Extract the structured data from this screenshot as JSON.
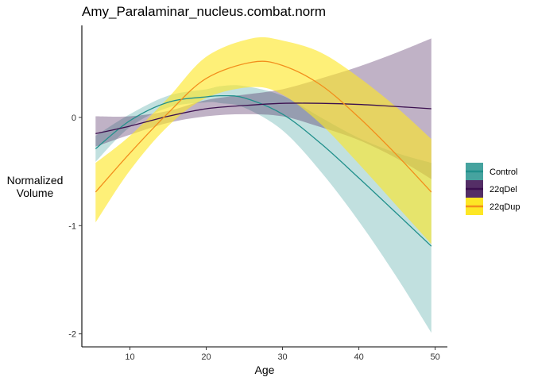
{
  "chart_data": {
    "type": "line",
    "title": "Amy_Paralaminar_nucleus.combat.norm",
    "xlabel": "Age",
    "ylabel_lines": [
      "Normalized",
      "Volume"
    ],
    "xlim": [
      3.7,
      51.6
    ],
    "ylim": [
      -2.12,
      0.85
    ],
    "xticks": [
      10,
      20,
      30,
      40,
      50
    ],
    "yticks": [
      0,
      -1,
      -2
    ],
    "grid": false,
    "legend_position": "right",
    "series": [
      {
        "name": "Control",
        "line_color": "#21908C",
        "band_color": "#21908C",
        "band_opacity": 0.28,
        "x": [
          5.5,
          10,
          15,
          20,
          22,
          25,
          30,
          35,
          40,
          45,
          49.5
        ],
        "y": [
          -0.29,
          -0.03,
          0.14,
          0.19,
          0.2,
          0.18,
          0.03,
          -0.24,
          -0.56,
          -0.89,
          -1.19
        ],
        "lower": [
          -0.41,
          -0.09,
          0.09,
          0.14,
          0.13,
          0.09,
          -0.12,
          -0.5,
          -0.96,
          -1.48,
          -1.99
        ],
        "upper": [
          -0.17,
          0.03,
          0.2,
          0.26,
          0.29,
          0.29,
          0.2,
          0.0,
          -0.19,
          -0.33,
          -0.42
        ]
      },
      {
        "name": "22qDel",
        "line_color": "#3B0F4F",
        "band_color": "#3B0F4F",
        "band_opacity": 0.32,
        "x": [
          5.5,
          10,
          15,
          20,
          25,
          30,
          35,
          40,
          45,
          49.5
        ],
        "y": [
          -0.15,
          -0.08,
          0.01,
          0.08,
          0.11,
          0.13,
          0.13,
          0.12,
          0.1,
          0.08
        ],
        "lower": [
          -0.27,
          -0.16,
          -0.05,
          0.01,
          0.03,
          0.01,
          -0.09,
          -0.21,
          -0.38,
          -0.57
        ],
        "upper": [
          0.01,
          0.01,
          0.06,
          0.16,
          0.21,
          0.26,
          0.36,
          0.47,
          0.6,
          0.73
        ]
      },
      {
        "name": "22qDup",
        "line_color": "#F28E1C",
        "band_color": "#FDE725",
        "band_opacity": 0.62,
        "x": [
          5.5,
          10,
          15,
          20,
          26,
          30,
          35,
          40,
          45,
          49.5
        ],
        "y": [
          -0.69,
          -0.33,
          0.04,
          0.36,
          0.51,
          0.48,
          0.3,
          0.0,
          -0.35,
          -0.69
        ],
        "lower": [
          -0.97,
          -0.49,
          -0.08,
          0.18,
          0.28,
          0.21,
          -0.06,
          -0.43,
          -0.82,
          -1.17
        ],
        "upper": [
          -0.42,
          -0.17,
          0.18,
          0.56,
          0.73,
          0.71,
          0.6,
          0.37,
          0.09,
          -0.2
        ]
      }
    ]
  }
}
